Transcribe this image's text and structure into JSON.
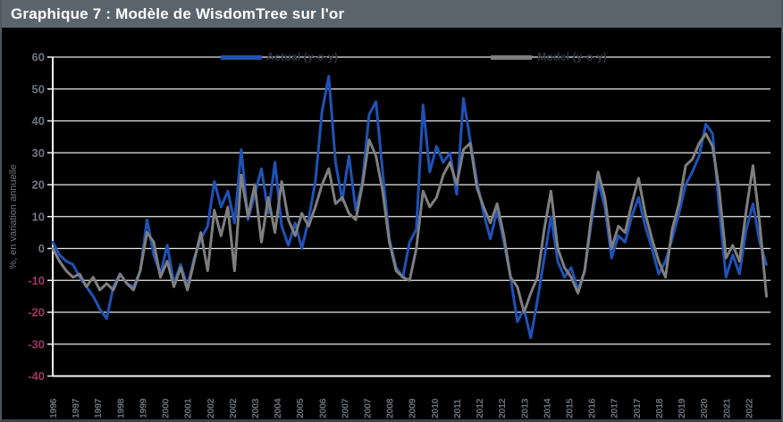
{
  "header": {
    "title": "Graphique 7 : Modèle de WisdomTree sur l'or"
  },
  "chart_data": {
    "type": "line",
    "title": "Graphique 7 : Modèle de WisdomTree sur l'or",
    "xlabel": "",
    "ylabel": "%, en variation annuelle",
    "ylim": [
      -40,
      60
    ],
    "y_ticks": [
      60,
      50,
      40,
      30,
      20,
      10,
      0,
      -10,
      -20,
      -30,
      -40
    ],
    "xlim": [
      1996.25,
      2022.9
    ],
    "grid": true,
    "legend_position": "top",
    "x_tick_labels": [
      "1996",
      "1997",
      "1997",
      "1998",
      "1999",
      "2000",
      "2001",
      "2002",
      "2002",
      "2003",
      "2004",
      "2005",
      "2006",
      "2007",
      "2007",
      "2008",
      "2009",
      "2010",
      "2011",
      "2012",
      "2012",
      "2013",
      "2014",
      "2015",
      "2016",
      "2017",
      "2017",
      "2018",
      "2019",
      "2020",
      "2021",
      "2022"
    ],
    "x_tick_start": 1996.25,
    "x_tick_step_years": 0.8333,
    "x_start": 1996.25,
    "x_step_years": 0.25,
    "series": [
      {
        "name": "Actual (y-o-y)",
        "color": "#1F52B7",
        "values": [
          2,
          -2,
          -4,
          -5,
          -9,
          -12,
          -15,
          -19,
          -22,
          -12,
          -8,
          -11,
          -12,
          -7,
          9,
          -2,
          -8,
          1,
          -11,
          -5,
          -12,
          -3,
          3,
          7,
          21,
          13,
          18,
          8,
          31,
          9,
          17,
          25,
          11,
          27,
          7,
          1,
          8,
          0,
          9,
          21,
          43,
          54,
          27,
          15,
          29,
          12,
          21,
          42,
          46,
          24,
          3,
          -6,
          -9,
          2,
          6,
          45,
          24,
          32,
          27,
          30,
          17,
          47,
          34,
          21,
          11,
          3,
          12,
          2,
          -9,
          -23,
          -19,
          -28,
          -16,
          -3,
          10,
          -4,
          -9,
          -6,
          -13,
          -7,
          8,
          21,
          13,
          -3,
          4,
          2,
          10,
          16,
          7,
          0,
          -8,
          -4,
          3,
          11,
          20,
          24,
          29,
          39,
          36,
          12,
          -9,
          -2,
          -8,
          6,
          14,
          2,
          -5
        ]
      },
      {
        "name": "Model (y-o-y)",
        "color": "#7F7F7F",
        "values": [
          0,
          -4,
          -7,
          -9,
          -8,
          -12,
          -9,
          -13,
          -11,
          -13,
          -8,
          -11,
          -13,
          -7,
          5,
          2,
          -9,
          -4,
          -12,
          -6,
          -13,
          -4,
          5,
          -7,
          12,
          4,
          13,
          -7,
          23,
          10,
          20,
          2,
          16,
          5,
          21,
          9,
          4,
          11,
          7,
          13,
          20,
          25,
          14,
          16,
          11,
          9,
          20,
          34,
          29,
          18,
          2,
          -7,
          -9,
          -10,
          0,
          18,
          13,
          16,
          23,
          27,
          20,
          31,
          33,
          19,
          13,
          8,
          14,
          4,
          -9,
          -12,
          -20,
          -14,
          -9,
          6,
          18,
          0,
          -6,
          -9,
          -14,
          -7,
          10,
          24,
          16,
          0,
          7,
          5,
          14,
          22,
          11,
          3,
          -4,
          -9,
          6,
          14,
          26,
          28,
          33,
          36,
          32,
          18,
          -3,
          1,
          -4,
          12,
          26,
          8,
          -15
        ]
      }
    ],
    "colors": {
      "actual_line": "#1F52B7",
      "model_line": "#7F7F7F",
      "positive_tick_label": "#6E747B",
      "negative_tick_label": "#A03664",
      "header_bg": "#5A646C",
      "plot_bg": "#000000",
      "gridline": "#E8E8E8"
    }
  }
}
